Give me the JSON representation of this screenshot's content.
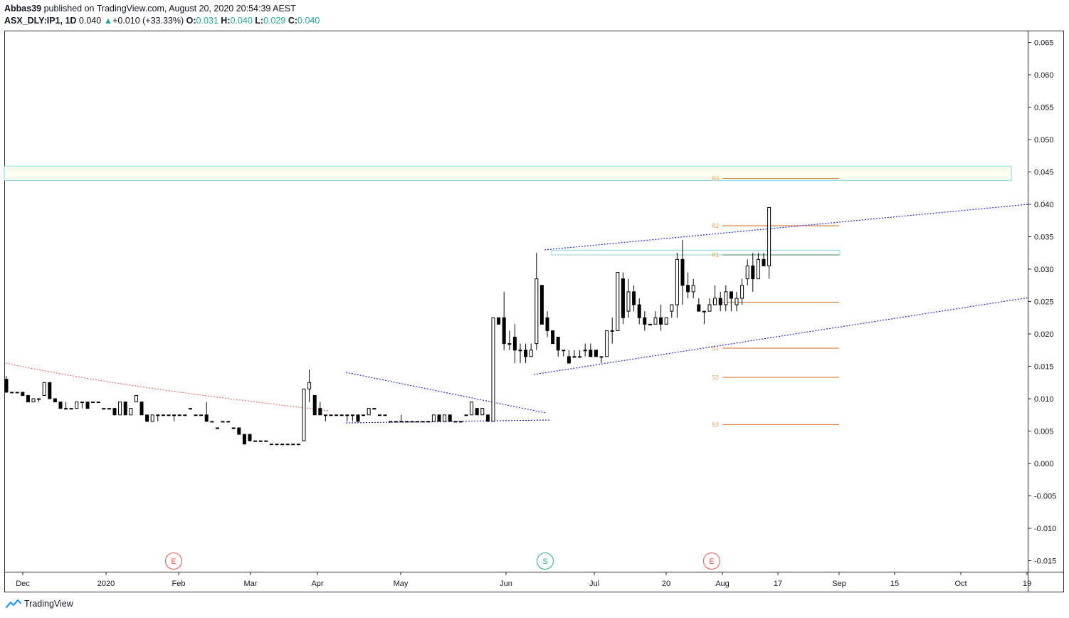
{
  "header": {
    "publisher": "Abbas39",
    "published_text": "published on TradingView.com, August 20, 2020 20:54:39 AEST",
    "symbol": "ASX_DLY:IP1, 1D",
    "last": "0.040",
    "change": "+0.010 (+33.33%)",
    "open_label": "O:",
    "open": "0.031",
    "high_label": "H:",
    "high": "0.040",
    "low_label": "L:",
    "low": "0.029",
    "close_label": "C:",
    "close": "0.040"
  },
  "footer": {
    "brand": "TradingView"
  },
  "colors": {
    "up_body": "#ffffff",
    "down_body": "#000000",
    "candle_line": "#000000",
    "accent_green": "#26a69a",
    "pivot_line": "#d2691e",
    "pivot_label": "#e89a4f",
    "trend_blue": "#2a2ad8",
    "trend_red": "#ef5350",
    "zone_border": "#7fd8e0",
    "zone_fill": "#fffff0",
    "grid_axis": "#2a2e39"
  },
  "chart_data": {
    "type": "candlestick",
    "symbol": "ASX_DLY:IP1",
    "interval": "1D",
    "y_axis": {
      "ticks": [
        "0.065",
        "0.060",
        "0.055",
        "0.050",
        "0.045",
        "0.040",
        "0.035",
        "0.030",
        "0.025",
        "0.020",
        "0.015",
        "0.010",
        "0.005",
        "0.000",
        "-0.005",
        "-0.010",
        "-0.015"
      ],
      "range": [
        -0.0165,
        0.0665
      ],
      "position": "right"
    },
    "x_axis": {
      "ticks": [
        "Dec",
        "2020",
        "Feb",
        "Mar",
        "Apr",
        "May",
        "Jun",
        "Jul",
        "20",
        "Aug",
        "17",
        "Sep",
        "15",
        "Oct",
        "19"
      ]
    },
    "pivots": [
      {
        "label": "R3",
        "value": 0.044
      },
      {
        "label": "R2",
        "value": 0.0367
      },
      {
        "label": "R1",
        "value": 0.0322
      },
      {
        "label": "P",
        "value": 0.0249
      },
      {
        "label": "S1",
        "value": 0.0178
      },
      {
        "label": "S2",
        "value": 0.0133
      },
      {
        "label": "S3",
        "value": 0.006
      }
    ],
    "events": [
      {
        "label": "E",
        "kind": "earnings"
      },
      {
        "label": "S",
        "kind": "split"
      },
      {
        "label": "E",
        "kind": "earnings"
      }
    ],
    "candles": [
      [
        0.013,
        0.0135,
        0.011,
        0.011
      ],
      [
        0.011,
        0.011,
        0.011,
        0.011
      ],
      [
        0.011,
        0.011,
        0.011,
        0.011
      ],
      [
        0.011,
        0.011,
        0.0105,
        0.0105
      ],
      [
        0.0105,
        0.0105,
        0.0095,
        0.0095
      ],
      [
        0.0095,
        0.01,
        0.0095,
        0.01
      ],
      [
        0.01,
        0.01,
        0.0095,
        0.01
      ],
      [
        0.0105,
        0.0125,
        0.0105,
        0.0125
      ],
      [
        0.0125,
        0.0125,
        0.01,
        0.01
      ],
      [
        0.01,
        0.01,
        0.0095,
        0.0095
      ],
      [
        0.0095,
        0.0095,
        0.0085,
        0.0085
      ],
      [
        0.0085,
        0.0095,
        0.0085,
        0.0085
      ],
      [
        0.0085,
        0.0085,
        0.0085,
        0.0085
      ],
      [
        0.0085,
        0.0095,
        0.0085,
        0.0095
      ],
      [
        0.0095,
        0.0095,
        0.0085,
        0.0095
      ],
      [
        0.0095,
        0.0095,
        0.0085,
        0.0085
      ],
      [
        0.0095,
        0.0095,
        0.0095,
        0.0095
      ],
      [
        0.0095,
        0.0095,
        0.0095,
        0.0095
      ],
      [
        0.0085,
        0.0085,
        0.0085,
        0.0085
      ],
      [
        0.0085,
        0.0085,
        0.0085,
        0.0085
      ],
      [
        0.0085,
        0.0085,
        0.0075,
        0.0075
      ],
      [
        0.0075,
        0.0095,
        0.0075,
        0.0095
      ],
      [
        0.0095,
        0.0095,
        0.0075,
        0.0075
      ],
      [
        0.0075,
        0.0085,
        0.0075,
        0.0085
      ],
      [
        0.0095,
        0.0105,
        0.0095,
        0.0105
      ],
      [
        0.0095,
        0.0095,
        0.0075,
        0.0075
      ],
      [
        0.0075,
        0.0075,
        0.0065,
        0.0065
      ],
      [
        0.0065,
        0.0075,
        0.0065,
        0.0075
      ],
      [
        0.0075,
        0.0075,
        0.0065,
        0.0075
      ],
      [
        0.0075,
        0.0075,
        0.0075,
        0.0075
      ],
      [
        0.0075,
        0.0075,
        0.0075,
        0.0075
      ],
      [
        0.0075,
        0.0075,
        0.0065,
        0.0075
      ],
      [
        0.0075,
        0.0075,
        0.0075,
        0.0075
      ],
      [
        0.0075,
        0.0075,
        0.0075,
        0.0075
      ],
      [
        0.0085,
        0.0085,
        0.0085,
        0.0085
      ],
      [
        0.0075,
        0.0075,
        0.0075,
        0.0075
      ],
      [
        0.0075,
        0.0075,
        0.0075,
        0.0075
      ],
      [
        0.0075,
        0.0095,
        0.0065,
        0.0065
      ],
      [
        0.0065,
        0.0065,
        0.0065,
        0.0065
      ],
      [
        0.0055,
        0.0055,
        0.0055,
        0.0055
      ],
      [
        0.0065,
        0.0065,
        0.0065,
        0.0065
      ],
      [
        0.0065,
        0.0065,
        0.0065,
        0.0065
      ],
      [
        0.0055,
        0.0055,
        0.0055,
        0.0055
      ],
      [
        0.0055,
        0.0055,
        0.0045,
        0.0045
      ],
      [
        0.0045,
        0.0045,
        0.003,
        0.003
      ],
      [
        0.0045,
        0.0045,
        0.0035,
        0.0035
      ],
      [
        0.0035,
        0.0035,
        0.0035,
        0.0035
      ],
      [
        0.0035,
        0.0035,
        0.0035,
        0.0035
      ],
      [
        0.0035,
        0.0035,
        0.0035,
        0.0035
      ],
      [
        0.003,
        0.003,
        0.003,
        0.003
      ],
      [
        0.003,
        0.003,
        0.003,
        0.003
      ],
      [
        0.003,
        0.003,
        0.003,
        0.003
      ],
      [
        0.003,
        0.003,
        0.003,
        0.003
      ],
      [
        0.003,
        0.003,
        0.003,
        0.003
      ],
      [
        0.003,
        0.003,
        0.003,
        0.003
      ],
      [
        0.0035,
        0.0115,
        0.0035,
        0.0115
      ],
      [
        0.0115,
        0.0145,
        0.0095,
        0.0125
      ],
      [
        0.0105,
        0.0105,
        0.0075,
        0.0075
      ],
      [
        0.0085,
        0.0095,
        0.0075,
        0.0075
      ],
      [
        0.0075,
        0.0075,
        0.0065,
        0.0075
      ],
      [
        0.0075,
        0.0075,
        0.0075,
        0.0075
      ],
      [
        0.0075,
        0.0075,
        0.0075,
        0.0075
      ],
      [
        0.0075,
        0.0075,
        0.0075,
        0.0075
      ],
      [
        0.0075,
        0.0075,
        0.0065,
        0.0075
      ],
      [
        0.0075,
        0.0075,
        0.0065,
        0.0075
      ],
      [
        0.0075,
        0.0075,
        0.0065,
        0.0065
      ],
      [
        0.0075,
        0.0075,
        0.0075,
        0.0075
      ],
      [
        0.0075,
        0.0085,
        0.0075,
        0.0085
      ],
      [
        0.0085,
        0.0085,
        0.0085,
        0.0085
      ],
      [
        0.0075,
        0.0075,
        0.0075,
        0.0075
      ],
      [
        0.0075,
        0.0075,
        0.0075,
        0.0075
      ],
      [
        0.0065,
        0.0065,
        0.0065,
        0.0065
      ],
      [
        0.0065,
        0.0065,
        0.0065,
        0.0065
      ],
      [
        0.0065,
        0.0075,
        0.0065,
        0.0065
      ],
      [
        0.0065,
        0.0065,
        0.0065,
        0.0065
      ],
      [
        0.0065,
        0.0065,
        0.0065,
        0.0065
      ],
      [
        0.0065,
        0.0065,
        0.0065,
        0.0065
      ],
      [
        0.0065,
        0.0065,
        0.0065,
        0.0065
      ],
      [
        0.0065,
        0.0065,
        0.0065,
        0.0065
      ],
      [
        0.0065,
        0.0075,
        0.0065,
        0.0075
      ],
      [
        0.0075,
        0.0075,
        0.0065,
        0.0065
      ],
      [
        0.0065,
        0.0075,
        0.0065,
        0.0075
      ],
      [
        0.0075,
        0.0075,
        0.0065,
        0.0065
      ],
      [
        0.0065,
        0.0065,
        0.0065,
        0.0065
      ],
      [
        0.0065,
        0.0065,
        0.0065,
        0.0065
      ],
      [
        0.0075,
        0.0075,
        0.0075,
        0.0075
      ],
      [
        0.0075,
        0.0095,
        0.0075,
        0.0095
      ],
      [
        0.0085,
        0.0085,
        0.0075,
        0.0075
      ],
      [
        0.0075,
        0.0085,
        0.0075,
        0.0085
      ],
      [
        0.0075,
        0.0075,
        0.0065,
        0.0065
      ],
      [
        0.0065,
        0.0225,
        0.0065,
        0.0225
      ],
      [
        0.0225,
        0.0225,
        0.0215,
        0.0215
      ],
      [
        0.0225,
        0.0265,
        0.0175,
        0.0185
      ],
      [
        0.0185,
        0.0205,
        0.0175,
        0.0185
      ],
      [
        0.0195,
        0.0215,
        0.0155,
        0.0175
      ],
      [
        0.0175,
        0.0185,
        0.0155,
        0.0175
      ],
      [
        0.0175,
        0.0185,
        0.0155,
        0.0165
      ],
      [
        0.0165,
        0.0185,
        0.0165,
        0.0175
      ],
      [
        0.0185,
        0.0325,
        0.0175,
        0.0285
      ],
      [
        0.0275,
        0.0275,
        0.0215,
        0.0215
      ],
      [
        0.0225,
        0.0235,
        0.0195,
        0.0205
      ],
      [
        0.0205,
        0.0205,
        0.0185,
        0.0185
      ],
      [
        0.0195,
        0.0195,
        0.0165,
        0.0175
      ],
      [
        0.0175,
        0.0175,
        0.0165,
        0.0175
      ],
      [
        0.0165,
        0.0175,
        0.0155,
        0.0155
      ],
      [
        0.0165,
        0.0175,
        0.0165,
        0.0165
      ],
      [
        0.0165,
        0.0175,
        0.0165,
        0.0165
      ],
      [
        0.0175,
        0.0185,
        0.0165,
        0.0175
      ],
      [
        0.0175,
        0.0185,
        0.0165,
        0.0165
      ],
      [
        0.0175,
        0.0175,
        0.0165,
        0.0165
      ],
      [
        0.0165,
        0.0165,
        0.0155,
        0.0165
      ],
      [
        0.0165,
        0.0205,
        0.0165,
        0.0205
      ],
      [
        0.0205,
        0.0225,
        0.0185,
        0.0205
      ],
      [
        0.0205,
        0.0295,
        0.0205,
        0.0295
      ],
      [
        0.0285,
        0.0295,
        0.0215,
        0.0225
      ],
      [
        0.0235,
        0.0285,
        0.0225,
        0.0265
      ],
      [
        0.0265,
        0.0275,
        0.0235,
        0.0245
      ],
      [
        0.0245,
        0.0255,
        0.0215,
        0.0225
      ],
      [
        0.0225,
        0.0235,
        0.0205,
        0.0215
      ],
      [
        0.0215,
        0.0215,
        0.0215,
        0.0215
      ],
      [
        0.0215,
        0.0235,
        0.0215,
        0.0225
      ],
      [
        0.0225,
        0.0245,
        0.0205,
        0.0215
      ],
      [
        0.0215,
        0.0225,
        0.0215,
        0.0225
      ],
      [
        0.0235,
        0.0245,
        0.0225,
        0.0245
      ],
      [
        0.0245,
        0.0325,
        0.0225,
        0.0315
      ],
      [
        0.0315,
        0.0345,
        0.0245,
        0.0275
      ],
      [
        0.0275,
        0.0295,
        0.0255,
        0.0265
      ],
      [
        0.0265,
        0.0285,
        0.0255,
        0.0275
      ],
      [
        0.0245,
        0.0255,
        0.0235,
        0.0235
      ],
      [
        0.0235,
        0.0235,
        0.0215,
        0.0235
      ],
      [
        0.0235,
        0.0255,
        0.0235,
        0.0245
      ],
      [
        0.0245,
        0.0275,
        0.0245,
        0.0255
      ],
      [
        0.0255,
        0.0265,
        0.0235,
        0.0245
      ],
      [
        0.0245,
        0.0275,
        0.0235,
        0.0265
      ],
      [
        0.0265,
        0.0265,
        0.0235,
        0.0255
      ],
      [
        0.0245,
        0.0265,
        0.0235,
        0.0255
      ],
      [
        0.0255,
        0.0285,
        0.0245,
        0.0275
      ],
      [
        0.0285,
        0.0315,
        0.0275,
        0.0305
      ],
      [
        0.0305,
        0.0325,
        0.0265,
        0.0285
      ],
      [
        0.0285,
        0.0325,
        0.0285,
        0.0315
      ],
      [
        0.0315,
        0.0325,
        0.0305,
        0.0305
      ],
      [
        0.0305,
        0.0395,
        0.0285,
        0.0395
      ]
    ]
  }
}
